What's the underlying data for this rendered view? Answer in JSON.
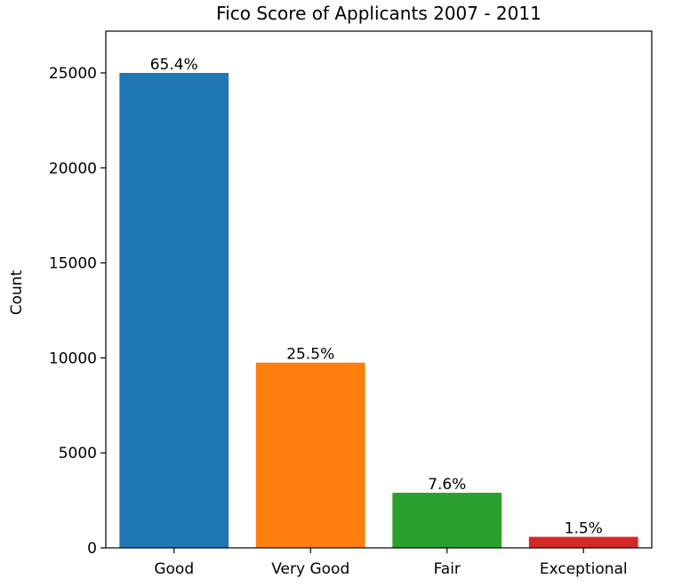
{
  "chart_data": {
    "type": "bar",
    "title": "Fico Score of Applicants 2007 - 2011",
    "xlabel": "",
    "ylabel": "Count",
    "categories": [
      "Good",
      "Very Good",
      "Fair",
      "Exceptional"
    ],
    "values": [
      25000,
      9750,
      2900,
      580
    ],
    "data_labels": [
      "65.4%",
      "25.5%",
      "7.6%",
      "1.5%"
    ],
    "colors": [
      "#1f77b4",
      "#ff7f0e",
      "#2ca02c",
      "#d62728"
    ],
    "ylim": [
      0,
      27200
    ],
    "yticks": [
      0,
      5000,
      10000,
      15000,
      20000,
      25000
    ],
    "grid": false,
    "legend": "none"
  }
}
